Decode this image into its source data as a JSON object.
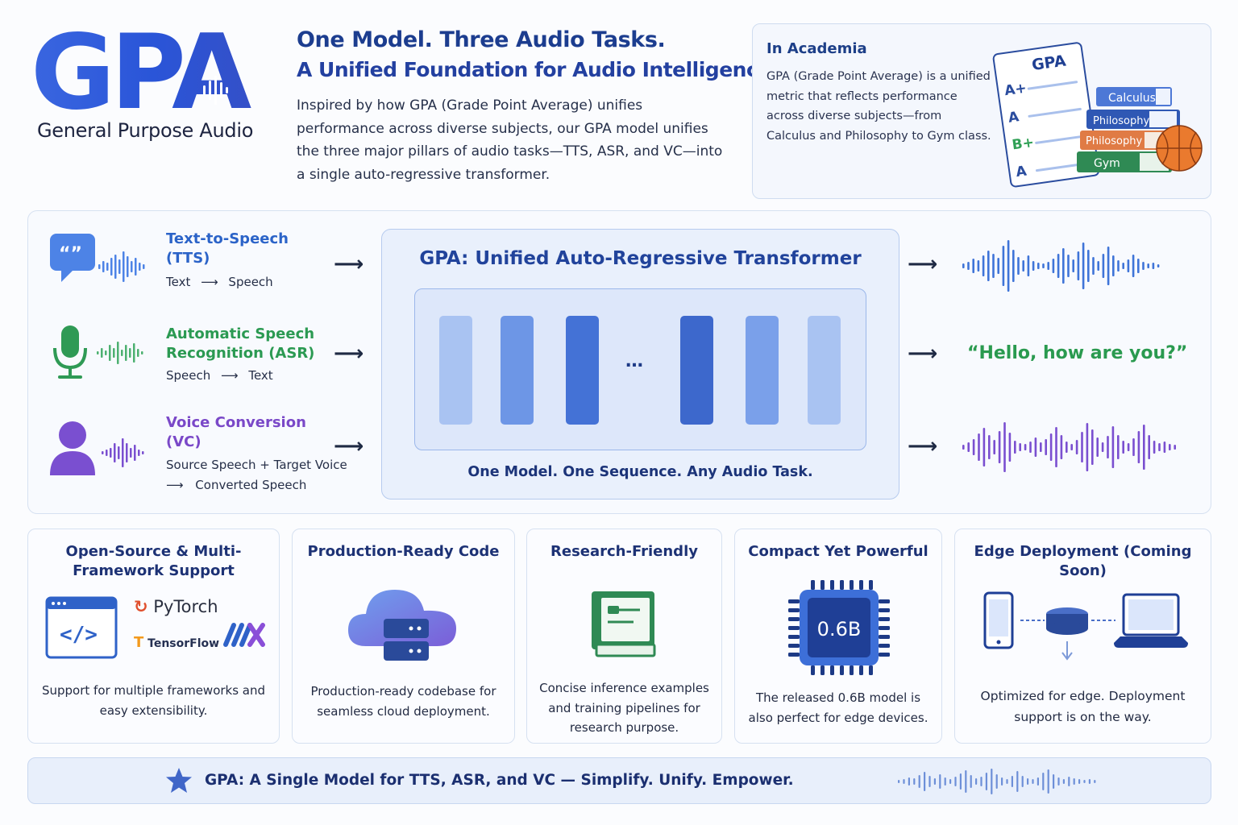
{
  "header": {
    "logo_text": "GPA",
    "logo_subtitle": "General Purpose Audio",
    "headline_1": "One Model. Three Audio Tasks.",
    "headline_2": "A Unified Foundation for Audio Intelligence.",
    "intro": "Inspired by how GPA (Grade Point Average) unifies performance across diverse subjects, our GPA model unifies the three major pillars of audio tasks—TTS, ASR, and VC—into a single auto-regressive transformer."
  },
  "academia": {
    "title": "In Academia",
    "text": "GPA (Grade Point Average) is a unified metric that reflects performance across diverse subjects—from Calculus and Philosophy to Gym class.",
    "sheet_title": "GPA",
    "grades": [
      "A+",
      "A",
      "B+",
      "A"
    ],
    "books": [
      "Calculus",
      "Philosophy",
      "Philosophy",
      "Gym"
    ]
  },
  "tasks": [
    {
      "title": "Text-to-Speech (TTS)",
      "from": "Text",
      "arrow": "⟶",
      "to": "Speech",
      "color": "#2b63c8"
    },
    {
      "title": "Automatic Speech Recognition (ASR)",
      "from": "Speech",
      "arrow": "⟶",
      "to": "Text",
      "color": "#2b9a52"
    },
    {
      "title": "Voice Conversion (VC)",
      "from": "Source Speech + Target Voice",
      "arrow": "⟶",
      "to": "Converted Speech",
      "color": "#7a48c8"
    }
  ],
  "core": {
    "title": "GPA:  Unified Auto-Regressive Transformer",
    "ellipsis": "…",
    "footer": "One Model. One Sequence. Any Audio Task."
  },
  "outputs": {
    "asr_text": "“Hello, how are you?”"
  },
  "features": [
    {
      "title": "Open-Source & Multi-Framework Support",
      "text": "Support for multiple frameworks and easy extensibility.",
      "frameworks": [
        "PyTorch",
        "TensorFlow"
      ]
    },
    {
      "title": "Production-Ready Code",
      "text": "Production-ready codebase for seamless cloud deployment."
    },
    {
      "title": "Research-Friendly",
      "text": "Concise inference examples and training pipelines for research purpose."
    },
    {
      "title": "Compact Yet Powerful",
      "text": "The released 0.6B model is also perfect for edge devices.",
      "chip_label": "0.6B"
    },
    {
      "title": "Edge Deployment (Coming Soon)",
      "text": "Optimized for edge. Deployment support is on the way."
    }
  ],
  "footer": {
    "text": "GPA: A Single Model for TTS, ASR, and VC — Simplify. Unify. Empower."
  },
  "colors": {
    "brand_blue": "#2b5fd0",
    "tts_blue": "#2b63c8",
    "asr_green": "#2b9a52",
    "vc_purple": "#7a48c8"
  }
}
